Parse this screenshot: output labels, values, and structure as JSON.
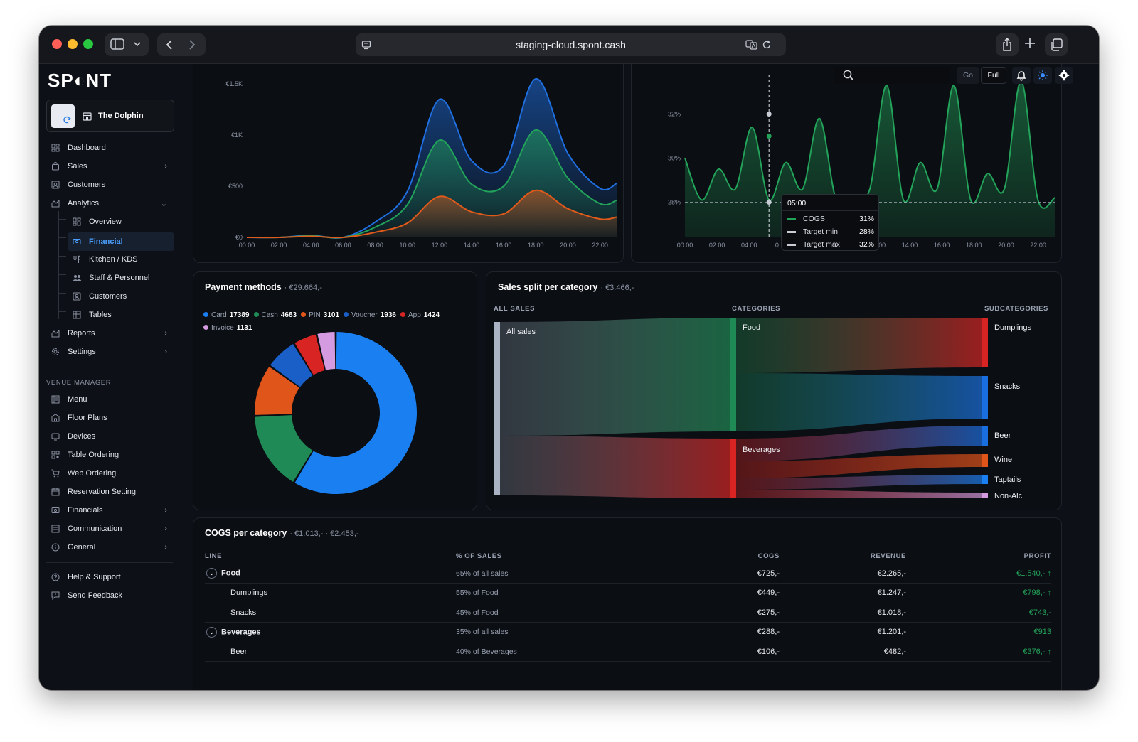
{
  "browser": {
    "url": "staging-cloud.spont.cash"
  },
  "sidebar": {
    "logo": "SP◐NT",
    "venue_name": "The Dolphin",
    "nav": [
      {
        "label": "Dashboard",
        "icon": "dashboard-icon"
      },
      {
        "label": "Sales",
        "icon": "bag-icon"
      },
      {
        "label": "Customers",
        "icon": "customers-icon"
      },
      {
        "label": "Analytics",
        "icon": "analytics-icon"
      }
    ],
    "analytics_sub": [
      {
        "label": "Overview"
      },
      {
        "label": "Financial"
      },
      {
        "label": "Kitchen / KDS"
      },
      {
        "label": "Staff & Personnel"
      },
      {
        "label": "Customers"
      },
      {
        "label": "Tables"
      }
    ],
    "nav2": [
      {
        "label": "Reports"
      },
      {
        "label": "Settings"
      }
    ],
    "venue_manager_label": "VENUE MANAGER",
    "vm": [
      {
        "label": "Menu"
      },
      {
        "label": "Floor Plans"
      },
      {
        "label": "Devices"
      },
      {
        "label": "Table Ordering"
      },
      {
        "label": "Web Ordering"
      },
      {
        "label": "Reservation Setting"
      },
      {
        "label": "Financials"
      },
      {
        "label": "Communication"
      },
      {
        "label": "General"
      }
    ],
    "help": "Help & Support",
    "feedback": "Send Feedback"
  },
  "topbar": {
    "go": "Go",
    "full": "Full"
  },
  "chart_data": [
    {
      "type": "area",
      "title": "",
      "x": [
        "00:00",
        "02:00",
        "04:00",
        "06:00",
        "08:00",
        "10:00",
        "12:00",
        "14:00",
        "16:00",
        "18:00",
        "20:00",
        "22:00"
      ],
      "yticks": [
        "€0",
        "€500",
        "€1K",
        "€1.5K"
      ],
      "ylim": [
        0,
        1550
      ],
      "series": [
        {
          "color": "#1f6fe0",
          "values": [
            0,
            0,
            20,
            0,
            150,
            450,
            1350,
            750,
            700,
            1550,
            820,
            480
          ]
        },
        {
          "color": "#23a35a",
          "values": [
            0,
            0,
            15,
            0,
            100,
            320,
            950,
            520,
            500,
            1050,
            580,
            330
          ]
        },
        {
          "color": "#e05a1a",
          "values": [
            0,
            0,
            10,
            0,
            50,
            140,
            400,
            250,
            230,
            460,
            280,
            180
          ]
        }
      ]
    },
    {
      "type": "area",
      "title": "",
      "x": [
        "00:00",
        "02:00",
        "04:00",
        "06:00",
        "08:00",
        "10:00",
        "12:00",
        "14:00",
        "16:00",
        "18:00",
        "20:00",
        "22:00"
      ],
      "yticks": [
        "28%",
        "30%",
        "32%"
      ],
      "ylim": [
        26.4,
        33.6
      ],
      "target_min": 28,
      "target_max": 32,
      "series": [
        {
          "color": "#23a35a",
          "values": [
            30,
            29.5,
            31.4,
            29.8,
            31.8,
            28.3,
            33.3,
            29.8,
            33.3,
            29.3,
            33.5,
            28.2
          ]
        }
      ],
      "tooltip": {
        "time": "05:00",
        "rows": [
          {
            "label": "COGS",
            "value": "31%"
          },
          {
            "label": "Target min",
            "value": "28%"
          },
          {
            "label": "Target max",
            "value": "32%"
          }
        ]
      },
      "x_partial": "0"
    },
    {
      "type": "pie",
      "title": "Payment methods",
      "subtitle": "· €29.664,-",
      "slices": [
        {
          "label": "Card",
          "value": 17389,
          "color": "#1a7ff0"
        },
        {
          "label": "Cash",
          "value": 4683,
          "color": "#1f8a55"
        },
        {
          "label": "PIN",
          "value": 3101,
          "color": "#e0551a"
        },
        {
          "label": "Voucher",
          "value": 1936,
          "color": "#1a5fc8"
        },
        {
          "label": "App",
          "value": 1424,
          "color": "#d92424"
        },
        {
          "label": "Invoice",
          "value": 1131,
          "color": "#d59be0"
        }
      ]
    },
    {
      "type": "sankey",
      "title": "Sales split per category",
      "subtitle": "· €3.466,-",
      "col_headers": [
        "ALL SALES",
        "CATEGORIES",
        "SUBCATEGORIES"
      ],
      "source": "All sales",
      "categories": [
        {
          "label": "Food",
          "color": "#1f8a55"
        },
        {
          "label": "Beverages",
          "color": "#d92424"
        }
      ],
      "subcategories": [
        {
          "label": "Dumplings",
          "color": "#d92424"
        },
        {
          "label": "Snacks",
          "color": "#1a6fe0"
        },
        {
          "label": "Beer",
          "color": "#1a6fe0"
        },
        {
          "label": "Wine",
          "color": "#e0551a"
        },
        {
          "label": "Taptails",
          "color": "#1a7ff0"
        },
        {
          "label": "Non-Alc",
          "color": "#d59be0"
        }
      ]
    }
  ],
  "cogs": {
    "title": "COGS per category",
    "subtitle": "· €1.013,- · €2.453,-",
    "headers": {
      "line": "LINE",
      "pct": "% OF SALES",
      "cogs": "COGS",
      "revenue": "REVENUE",
      "profit": "PROFIT"
    },
    "rows": [
      {
        "line": "Food",
        "pct": "65% of all sales",
        "cogs": "€725,-",
        "revenue": "€2.265,-",
        "profit": "€1.540,- ↑"
      },
      {
        "line": "Dumplings",
        "pct": "55% of Food",
        "cogs": "€449,-",
        "revenue": "€1.247,-",
        "profit": "€798,- ↑"
      },
      {
        "line": "Snacks",
        "pct": "45% of Food",
        "cogs": "€275,-",
        "revenue": "€1.018,-",
        "profit": "€743,-"
      },
      {
        "line": "Beverages",
        "pct": "35% of all sales",
        "cogs": "€288,-",
        "revenue": "€1.201,-",
        "profit": "€913"
      },
      {
        "line": "Beer",
        "pct": "40% of Beverages",
        "cogs": "€106,-",
        "revenue": "€482,-",
        "profit": "€376,- ↑"
      }
    ]
  }
}
